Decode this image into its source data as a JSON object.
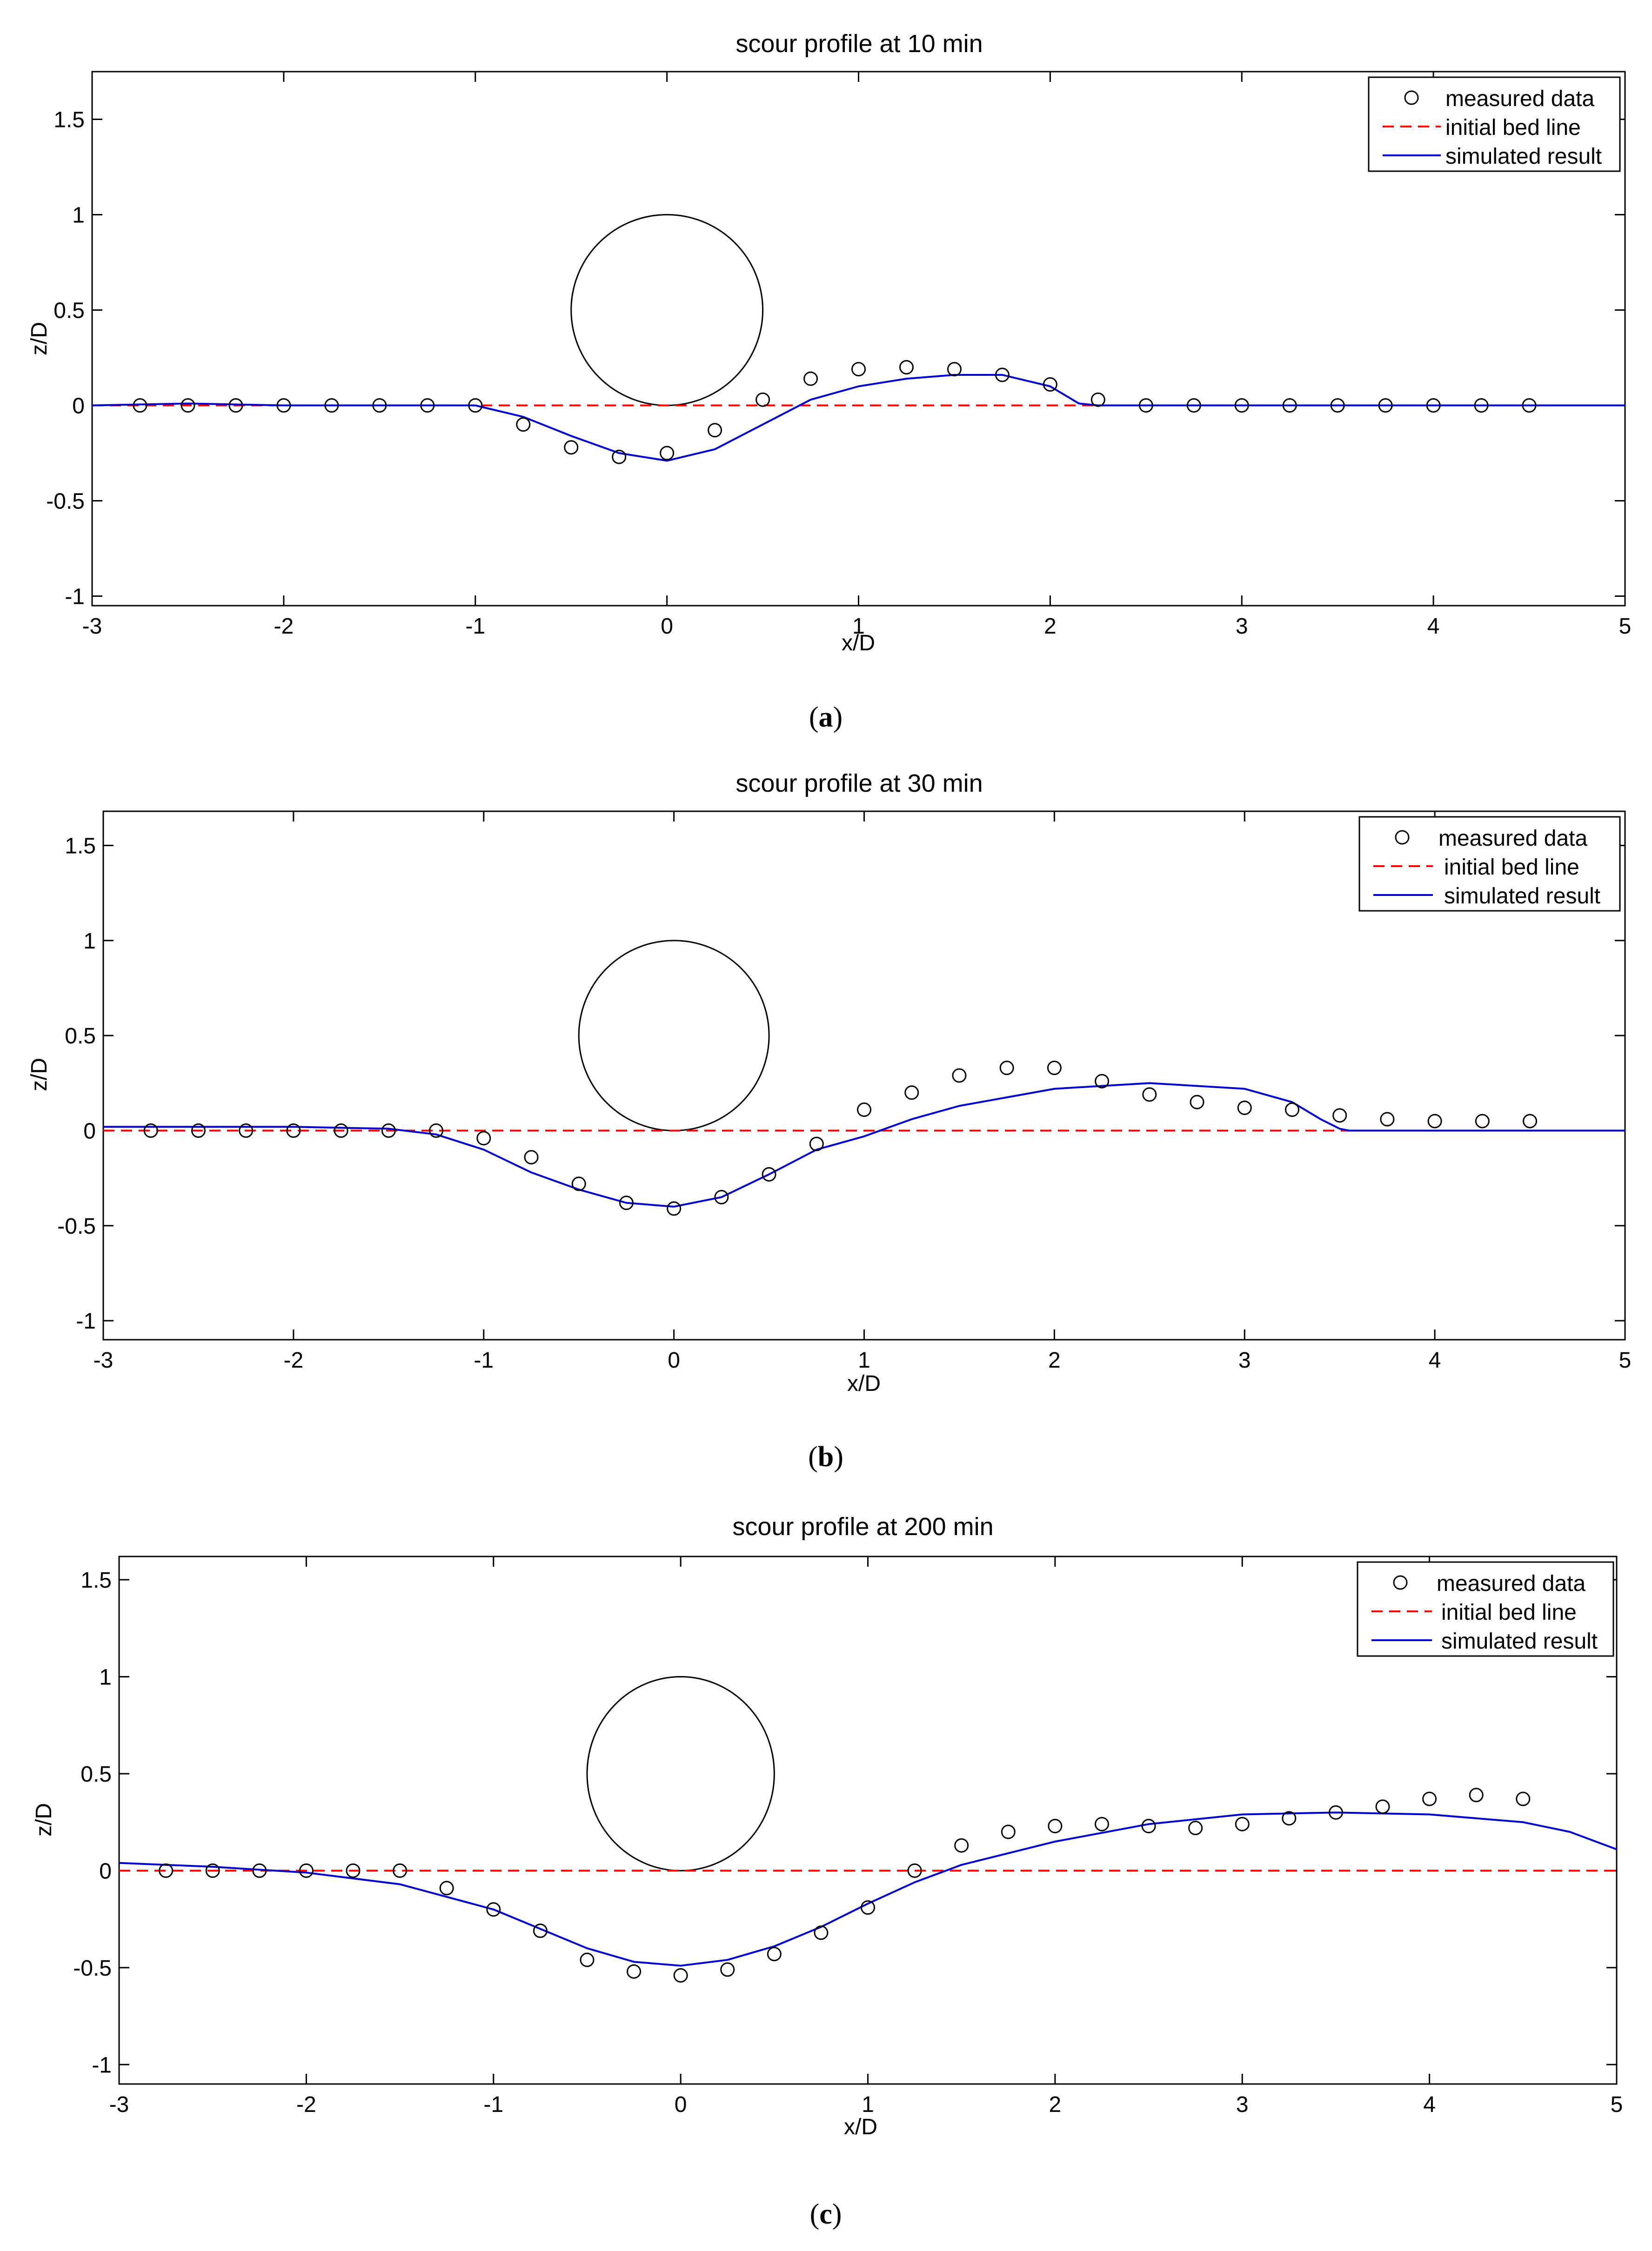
{
  "legend_labels": {
    "measured": "measured data",
    "initial": "initial bed line",
    "simulated": "simulated result"
  },
  "colors": {
    "measured": "#000000",
    "initial": "#ff0000",
    "simulated": "#0000cc",
    "axes": "#000000"
  },
  "chart_data": [
    {
      "type": "line",
      "title": "scour profile at 10 min",
      "panel_label": "a",
      "xlabel": "x/D",
      "ylabel": "z/D",
      "xlim": [
        -3,
        5
      ],
      "ylim": [
        -1.05,
        1.75
      ],
      "xticks": [
        -3,
        -2,
        -1,
        0,
        1,
        2,
        3,
        4,
        5
      ],
      "yticks": [
        -1,
        -0.5,
        0,
        0.5,
        1,
        1.5
      ],
      "grid": false,
      "legend": "top-right",
      "pier": {
        "center": [
          0,
          0.5
        ],
        "radius": 0.5
      },
      "series": [
        {
          "name": "measured data",
          "style": "markers",
          "x": [
            -2.75,
            -2.5,
            -2.25,
            -2,
            -1.75,
            -1.5,
            -1.25,
            -1,
            -0.75,
            -0.5,
            -0.25,
            0,
            0.25,
            0.5,
            0.75,
            1,
            1.25,
            1.5,
            1.75,
            2,
            2.25,
            2.5,
            2.75,
            3,
            3.25,
            3.5,
            3.75,
            4,
            4.25,
            4.5
          ],
          "y": [
            0,
            0,
            0,
            0,
            0,
            0,
            0,
            0,
            -0.1,
            -0.22,
            -0.27,
            -0.25,
            -0.13,
            0.03,
            0.14,
            0.19,
            0.2,
            0.19,
            0.16,
            0.11,
            0.03,
            0,
            0,
            0,
            0,
            0,
            0,
            0,
            0,
            0
          ]
        },
        {
          "name": "initial bed line",
          "style": "dashed",
          "x": [
            -3,
            5
          ],
          "y": [
            0,
            0
          ]
        },
        {
          "name": "simulated result",
          "style": "line",
          "x": [
            -3,
            -2.5,
            -2,
            -1.5,
            -1,
            -0.75,
            -0.5,
            -0.25,
            0,
            0.25,
            0.5,
            0.75,
            1,
            1.25,
            1.5,
            1.75,
            2,
            2.15,
            2.25,
            3,
            4,
            5
          ],
          "y": [
            0,
            0.01,
            0,
            0,
            0,
            -0.06,
            -0.16,
            -0.25,
            -0.29,
            -0.23,
            -0.1,
            0.03,
            0.1,
            0.14,
            0.16,
            0.16,
            0.1,
            0.01,
            0,
            0,
            0,
            0
          ]
        }
      ]
    },
    {
      "type": "line",
      "title": "scour profile at 30 min",
      "panel_label": "b",
      "xlabel": "x/D",
      "ylabel": "z/D",
      "xlim": [
        -3,
        5
      ],
      "ylim": [
        -1.1,
        1.68
      ],
      "xticks": [
        -3,
        -2,
        -1,
        0,
        1,
        2,
        3,
        4,
        5
      ],
      "yticks": [
        -1,
        -0.5,
        0,
        0.5,
        1,
        1.5
      ],
      "grid": false,
      "legend": "top-right",
      "pier": {
        "center": [
          0,
          0.5
        ],
        "radius": 0.5
      },
      "series": [
        {
          "name": "measured data",
          "style": "markers",
          "x": [
            -2.75,
            -2.5,
            -2.25,
            -2,
            -1.75,
            -1.5,
            -1.25,
            -1,
            -0.75,
            -0.5,
            -0.25,
            0,
            0.25,
            0.5,
            0.75,
            1,
            1.25,
            1.5,
            1.75,
            2,
            2.25,
            2.5,
            2.75,
            3,
            3.25,
            3.5,
            3.75,
            4,
            4.25,
            4.5
          ],
          "y": [
            0,
            0,
            0,
            0,
            0,
            0,
            0,
            -0.04,
            -0.14,
            -0.28,
            -0.38,
            -0.41,
            -0.35,
            -0.23,
            -0.07,
            0.11,
            0.2,
            0.29,
            0.33,
            0.33,
            0.26,
            0.19,
            0.15,
            0.12,
            0.11,
            0.08,
            0.06,
            0.05,
            0.05,
            0.05
          ]
        },
        {
          "name": "initial bed line",
          "style": "dashed",
          "x": [
            -3,
            5
          ],
          "y": [
            0,
            0
          ]
        },
        {
          "name": "simulated result",
          "style": "line",
          "x": [
            -3,
            -2,
            -1.5,
            -1.25,
            -1,
            -0.75,
            -0.5,
            -0.25,
            0,
            0.25,
            0.5,
            0.75,
            1,
            1.25,
            1.5,
            2,
            2.5,
            3,
            3.25,
            3.4,
            3.5,
            3.55,
            4,
            5
          ],
          "y": [
            0.02,
            0.02,
            0.01,
            -0.02,
            -0.1,
            -0.22,
            -0.31,
            -0.38,
            -0.4,
            -0.35,
            -0.23,
            -0.1,
            -0.03,
            0.06,
            0.13,
            0.22,
            0.25,
            0.22,
            0.15,
            0.06,
            0.01,
            0,
            0,
            0
          ]
        }
      ]
    },
    {
      "type": "line",
      "title": "scour profile at 200 min",
      "panel_label": "c",
      "xlabel": "x/D",
      "ylabel": "z/D",
      "xlim": [
        -3,
        5
      ],
      "ylim": [
        -1.1,
        1.62
      ],
      "xticks": [
        -3,
        -2,
        -1,
        0,
        1,
        2,
        3,
        4,
        5
      ],
      "yticks": [
        -1,
        -0.5,
        0,
        0.5,
        1,
        1.5
      ],
      "grid": false,
      "legend": "top-right",
      "pier": {
        "center": [
          0,
          0.5
        ],
        "radius": 0.5
      },
      "series": [
        {
          "name": "measured data",
          "style": "markers",
          "x": [
            -2.75,
            -2.5,
            -2.25,
            -2,
            -1.75,
            -1.5,
            -1.25,
            -1,
            -0.75,
            -0.5,
            -0.25,
            0,
            0.25,
            0.5,
            0.75,
            1,
            1.25,
            1.5,
            1.75,
            2,
            2.25,
            2.5,
            2.75,
            3,
            3.25,
            3.5,
            3.75,
            4,
            4.25,
            4.5
          ],
          "y": [
            0,
            0,
            0,
            0,
            0,
            0,
            -0.09,
            -0.2,
            -0.31,
            -0.46,
            -0.52,
            -0.54,
            -0.51,
            -0.43,
            -0.32,
            -0.19,
            0,
            0.13,
            0.2,
            0.23,
            0.24,
            0.23,
            0.22,
            0.24,
            0.27,
            0.3,
            0.33,
            0.37,
            0.39,
            0.37
          ]
        },
        {
          "name": "initial bed line",
          "style": "dashed",
          "x": [
            -3,
            5
          ],
          "y": [
            0,
            0
          ]
        },
        {
          "name": "simulated result",
          "style": "line",
          "x": [
            -3,
            -2.5,
            -2,
            -1.5,
            -1,
            -0.75,
            -0.5,
            -0.25,
            0,
            0.25,
            0.5,
            0.75,
            1,
            1.25,
            1.5,
            2,
            2.5,
            3,
            3.5,
            4,
            4.5,
            4.75,
            5
          ],
          "y": [
            0.04,
            0.02,
            -0.01,
            -0.07,
            -0.2,
            -0.3,
            -0.4,
            -0.47,
            -0.49,
            -0.46,
            -0.39,
            -0.29,
            -0.17,
            -0.06,
            0.03,
            0.15,
            0.24,
            0.29,
            0.3,
            0.29,
            0.25,
            0.2,
            0.11
          ]
        }
      ]
    }
  ]
}
